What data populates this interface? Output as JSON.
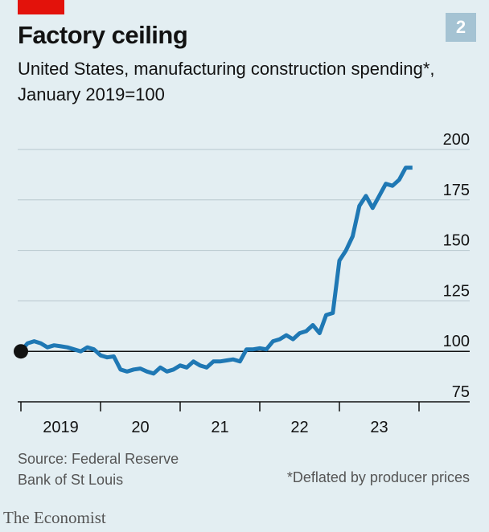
{
  "header": {
    "title": "Factory ceiling",
    "chart_number": "2",
    "subtitle": "United States, manufacturing construction spending*, January 2019=100"
  },
  "footer": {
    "source_line1": "Source: Federal Reserve",
    "source_line2": "Bank of St Louis",
    "note": "*Deflated by producer prices",
    "brand": "The Economist"
  },
  "colors": {
    "background": "#e3eef2",
    "line": "#1f78b4",
    "accent": "#e3120b",
    "badge": "#a5c3d3"
  },
  "chart_data": {
    "type": "line",
    "title": "Factory ceiling",
    "xlabel": "",
    "ylabel": "",
    "ylim": [
      75,
      200
    ],
    "yticks": [
      75,
      100,
      125,
      150,
      175,
      200
    ],
    "ytick_labels": [
      "75",
      "100",
      "125",
      "150",
      "175",
      "200"
    ],
    "xtick_labels": [
      "2019",
      "20",
      "21",
      "22",
      "23"
    ],
    "xlim": [
      2019.0,
      2024.0
    ],
    "baseline": 100,
    "grid": true,
    "series": [
      {
        "x": [
          2019.0,
          2019.083,
          2019.167,
          2019.25,
          2019.333,
          2019.417,
          2019.5,
          2019.583,
          2019.667,
          2019.75,
          2019.833,
          2019.917,
          2020.0,
          2020.083,
          2020.167,
          2020.25,
          2020.333,
          2020.417,
          2020.5,
          2020.583,
          2020.667,
          2020.75,
          2020.833,
          2020.917,
          2021.0,
          2021.083,
          2021.167,
          2021.25,
          2021.333,
          2021.417,
          2021.5,
          2021.583,
          2021.667,
          2021.75,
          2021.833,
          2021.917,
          2022.0,
          2022.083,
          2022.167,
          2022.25,
          2022.333,
          2022.417,
          2022.5,
          2022.583,
          2022.667,
          2022.75,
          2022.833,
          2022.917,
          2023.0,
          2023.083,
          2023.167,
          2023.25,
          2023.333,
          2023.417,
          2023.5,
          2023.583,
          2023.667,
          2023.75,
          2023.833,
          2023.917
        ],
        "values": [
          100,
          104,
          105,
          104,
          102,
          103,
          102.5,
          102,
          101,
          100,
          102,
          101,
          98,
          97,
          97.5,
          91,
          90,
          91,
          91.5,
          90,
          89,
          92,
          90,
          91,
          93,
          92,
          95,
          93,
          92,
          95,
          95,
          95.5,
          96,
          95,
          101,
          101,
          101.5,
          101,
          105,
          106,
          108,
          106,
          109,
          110,
          113,
          109,
          118,
          119,
          145,
          150,
          157,
          172,
          177,
          171,
          177,
          183,
          182,
          185,
          191,
          191
        ]
      }
    ]
  }
}
